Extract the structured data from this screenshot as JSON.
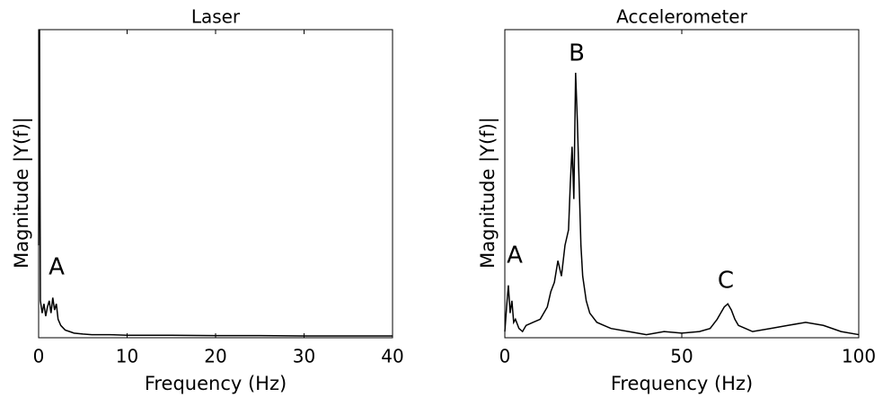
{
  "chart_data": [
    {
      "type": "line",
      "title": "Laser",
      "x_label": "Frequency (Hz)",
      "y_label": "Magnitude |Y(f)|",
      "x": [
        0,
        0.1,
        0.2,
        0.4,
        0.6,
        0.8,
        1.0,
        1.2,
        1.4,
        1.6,
        1.8,
        2.0,
        2.2,
        2.5,
        3,
        3.5,
        4,
        5,
        6,
        8,
        10,
        15,
        20,
        25,
        30,
        35,
        40
      ],
      "values": [
        0.3,
        1.0,
        0.12,
        0.08,
        0.11,
        0.07,
        0.1,
        0.12,
        0.08,
        0.13,
        0.09,
        0.11,
        0.06,
        0.04,
        0.025,
        0.02,
        0.015,
        0.012,
        0.01,
        0.01,
        0.008,
        0.008,
        0.007,
        0.007,
        0.006,
        0.006,
        0.006
      ],
      "color": "#000000",
      "xlim": [
        0,
        40
      ],
      "xticks": [
        0,
        10,
        20,
        30,
        40
      ],
      "ylim": [
        0,
        1
      ],
      "annotations": [
        "A"
      ]
    },
    {
      "type": "line",
      "title": "Accelerometer",
      "x_label": "Frequency (Hz)",
      "y_label": "Magnitude |Y(f)|",
      "x": [
        0,
        0.5,
        1,
        1.5,
        2,
        2.5,
        3,
        4,
        5,
        6,
        8,
        10,
        12,
        13,
        14,
        15,
        16,
        17,
        18,
        18.5,
        19,
        19.5,
        20,
        20.5,
        21,
        21.5,
        22,
        23,
        24,
        26,
        28,
        30,
        35,
        40,
        45,
        50,
        55,
        58,
        60,
        61,
        62,
        63,
        64,
        65,
        66,
        68,
        70,
        75,
        80,
        85,
        90,
        95,
        100
      ],
      "values": [
        0.02,
        0.1,
        0.17,
        0.08,
        0.12,
        0.05,
        0.06,
        0.03,
        0.02,
        0.04,
        0.05,
        0.06,
        0.1,
        0.15,
        0.18,
        0.25,
        0.2,
        0.3,
        0.35,
        0.5,
        0.62,
        0.45,
        0.86,
        0.7,
        0.5,
        0.3,
        0.2,
        0.12,
        0.08,
        0.05,
        0.04,
        0.03,
        0.02,
        0.01,
        0.02,
        0.015,
        0.02,
        0.03,
        0.06,
        0.08,
        0.1,
        0.11,
        0.09,
        0.06,
        0.04,
        0.03,
        0.02,
        0.03,
        0.04,
        0.05,
        0.04,
        0.02,
        0.01
      ],
      "color": "#000000",
      "xlim": [
        0,
        100
      ],
      "xticks": [
        0,
        50,
        100
      ],
      "ylim": [
        0,
        1
      ],
      "annotations": [
        "A",
        "B",
        "C"
      ]
    }
  ]
}
